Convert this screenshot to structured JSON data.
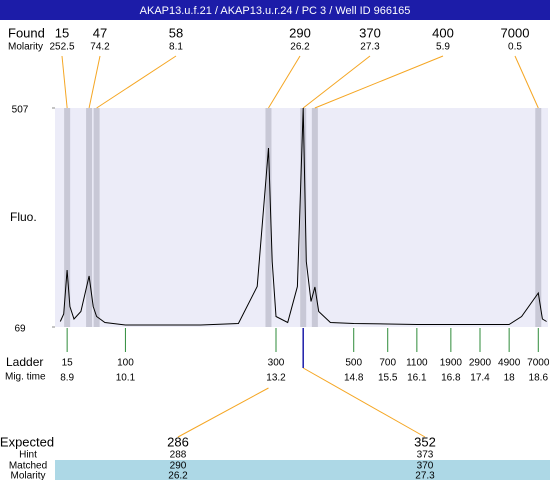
{
  "title": "AKAP13.u.f.21 / AKAP13.u.r.24 / PC 3 / Well ID 966165",
  "chart_data": {
    "type": "line",
    "y_label": "Fluo.",
    "ylim": [
      69,
      507
    ],
    "yticks": [
      69,
      507
    ],
    "xlim": [
      8.65,
      18.8
    ],
    "color": "#000000",
    "x": [
      5,
      10,
      15,
      19,
      25,
      35,
      47,
      53,
      58,
      70,
      100,
      200,
      250,
      275,
      290,
      295,
      300,
      330,
      355,
      370,
      378,
      390,
      400,
      410,
      440,
      500,
      700,
      1100,
      4900,
      5800,
      7000,
      7300,
      7600
    ],
    "values": [
      80,
      95,
      183,
      110,
      85,
      100,
      171,
      110,
      90,
      78,
      73,
      73,
      76,
      150,
      427,
      200,
      90,
      78,
      150,
      507,
      200,
      120,
      149,
      100,
      78,
      76,
      75,
      74,
      74,
      90,
      137,
      85,
      80
    ],
    "found": {
      "label": "Found",
      "molarity_label": "Molarity",
      "sizes": [
        15,
        47,
        58,
        290,
        370,
        400,
        7000
      ],
      "molarity": [
        252.5,
        74.2,
        8.1,
        26.2,
        27.3,
        5.9,
        0.5
      ]
    },
    "ladder": {
      "label": "Ladder",
      "time_label": "Mig. time",
      "sizes": [
        15,
        100,
        300,
        500,
        700,
        1100,
        1900,
        2900,
        4900,
        7000
      ],
      "times": [
        8.9,
        10.1,
        13.2,
        14.8,
        15.5,
        16.1,
        16.8,
        17.4,
        18,
        18.6
      ]
    },
    "expected": {
      "label": "Expected",
      "hint_label": "Hint",
      "matched_label": "Matched",
      "molarity_label": "Molarity",
      "sizes": [
        286,
        352
      ],
      "hint": [
        288,
        373
      ],
      "matched": [
        290,
        370
      ],
      "molarity": [
        26.2,
        27.3
      ]
    }
  }
}
